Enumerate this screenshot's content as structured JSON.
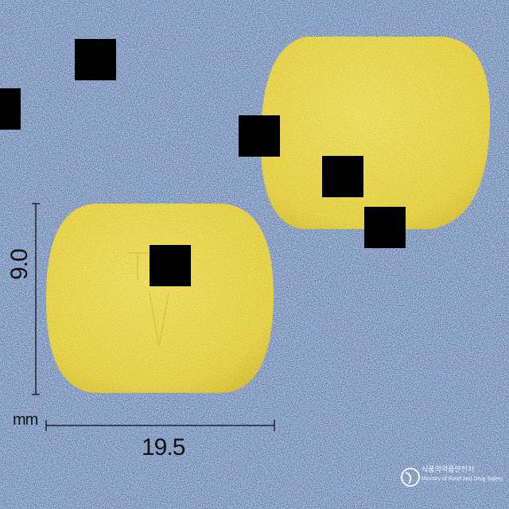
{
  "scene": {
    "background_color": "#a7c1ec",
    "pill_color": "#f0dc4e",
    "pill_shadow_color": "#d9c232",
    "occluder_color": "#000000",
    "pill_imprint": "T"
  },
  "dimensions": {
    "width_value": "19.5",
    "height_value": "9.0",
    "unit": "mm"
  },
  "watermark": {
    "agency_korean": "식품의약품안전처",
    "agency_english": "Ministry of Food and Drug Safety"
  }
}
